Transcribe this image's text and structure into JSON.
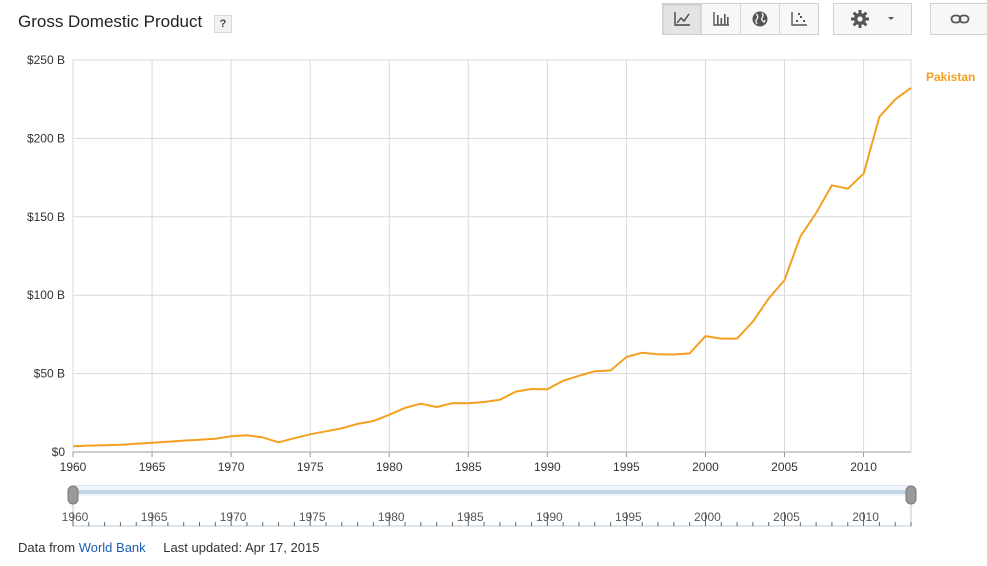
{
  "header": {
    "title": "Gross Domestic Product",
    "help_label": "?"
  },
  "toolbar": {
    "buttons": [
      {
        "name": "line-chart",
        "active": true
      },
      {
        "name": "bar-chart",
        "active": false
      },
      {
        "name": "map",
        "active": false
      },
      {
        "name": "scatter",
        "active": false
      }
    ]
  },
  "footer": {
    "source_prefix": "Data from",
    "source_link": "World Bank",
    "updated": "Last updated: Apr 17, 2015"
  },
  "colors": {
    "series": "#f4a01f",
    "grid": "#d9d9d9"
  },
  "chart_data": {
    "type": "line",
    "title": "Gross Domestic Product",
    "xlabel": "",
    "ylabel": "",
    "xlim": [
      1960,
      2013
    ],
    "ylim": [
      0,
      250
    ],
    "x_ticks": [
      1960,
      1965,
      1970,
      1975,
      1980,
      1985,
      1990,
      1995,
      2000,
      2005,
      2010
    ],
    "y_ticks": [
      {
        "value": 0,
        "label": "$0"
      },
      {
        "value": 50,
        "label": "$50 B"
      },
      {
        "value": 100,
        "label": "$100 B"
      },
      {
        "value": 150,
        "label": "$150 B"
      },
      {
        "value": 200,
        "label": "$200 B"
      },
      {
        "value": 250,
        "label": "$250 B"
      }
    ],
    "grid": true,
    "legend": "right",
    "x": [
      1960,
      1961,
      1962,
      1963,
      1964,
      1965,
      1966,
      1967,
      1968,
      1969,
      1970,
      1971,
      1972,
      1973,
      1974,
      1975,
      1976,
      1977,
      1978,
      1979,
      1980,
      1981,
      1982,
      1983,
      1984,
      1985,
      1986,
      1987,
      1988,
      1989,
      1990,
      1991,
      1992,
      1993,
      1994,
      1995,
      1996,
      1997,
      1998,
      1999,
      2000,
      2001,
      2002,
      2003,
      2004,
      2005,
      2006,
      2007,
      2008,
      2009,
      2010,
      2011,
      2012,
      2013
    ],
    "series": [
      {
        "name": "Pakistan",
        "values": [
          3.7,
          4.1,
          4.3,
          4.6,
          5.2,
          5.9,
          6.5,
          7.3,
          7.8,
          8.5,
          10.0,
          10.7,
          9.3,
          6.2,
          8.8,
          11.3,
          13.2,
          15.1,
          17.9,
          19.8,
          23.7,
          28.1,
          30.8,
          28.7,
          31.2,
          31.1,
          31.9,
          33.3,
          38.5,
          40.2,
          40.0,
          45.5,
          48.6,
          51.5,
          52.0,
          60.6,
          63.3,
          62.4,
          62.2,
          62.9,
          73.9,
          72.3,
          72.3,
          83.2,
          97.9,
          109.6,
          137.3,
          152.4,
          170.1,
          167.9,
          177.4,
          213.8,
          224.9,
          232.3
        ]
      }
    ]
  }
}
